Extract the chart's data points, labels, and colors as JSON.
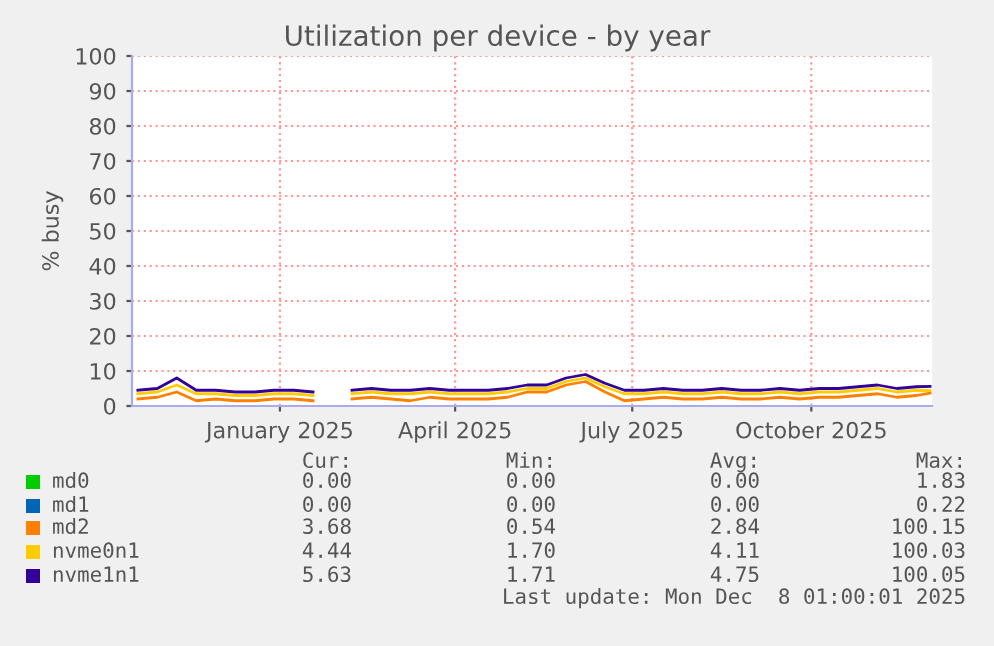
{
  "chart_data": {
    "type": "line",
    "title": "Utilization per device - by year",
    "ylabel": "% busy",
    "x": [
      "2024-10-20",
      "2024-10-30",
      "2024-11-09",
      "2024-11-19",
      "2024-11-29",
      "2024-12-09",
      "2024-12-19",
      "2024-12-29",
      "2025-01-08",
      "2025-01-18",
      "2025-01-28",
      "2025-02-07",
      "2025-02-17",
      "2025-02-27",
      "2025-03-09",
      "2025-03-19",
      "2025-03-29",
      "2025-04-08",
      "2025-04-18",
      "2025-04-28",
      "2025-05-08",
      "2025-05-18",
      "2025-05-28",
      "2025-06-07",
      "2025-06-17",
      "2025-06-27",
      "2025-07-07",
      "2025-07-17",
      "2025-07-27",
      "2025-08-06",
      "2025-08-16",
      "2025-08-26",
      "2025-09-05",
      "2025-09-15",
      "2025-09-25",
      "2025-10-05",
      "2025-10-15",
      "2025-10-25",
      "2025-11-04",
      "2025-11-14",
      "2025-11-24",
      "2025-12-01"
    ],
    "series": [
      {
        "name": "md0",
        "color": "#00cc00",
        "values": [
          null,
          null,
          null,
          null,
          null,
          null,
          null,
          null,
          null,
          null,
          null,
          null,
          null,
          null,
          null,
          null,
          null,
          null,
          null,
          null,
          null,
          null,
          null,
          null,
          null,
          null,
          null,
          null,
          null,
          null,
          null,
          null,
          null,
          null,
          null,
          null,
          null,
          null,
          null,
          null,
          null,
          null
        ]
      },
      {
        "name": "md1",
        "color": "#0066b3",
        "values": [
          null,
          null,
          null,
          null,
          null,
          null,
          null,
          null,
          null,
          null,
          null,
          null,
          null,
          null,
          null,
          null,
          null,
          null,
          null,
          null,
          null,
          null,
          null,
          null,
          null,
          null,
          null,
          null,
          null,
          null,
          null,
          null,
          null,
          null,
          null,
          null,
          null,
          null,
          null,
          null,
          null,
          null
        ]
      },
      {
        "name": "md2",
        "color": "#ff8000",
        "values": [
          2,
          2.5,
          4,
          1.5,
          2,
          1.5,
          1.5,
          2,
          2,
          1.5,
          null,
          2,
          2.5,
          2,
          1.5,
          2.5,
          2,
          2,
          2,
          2.5,
          4,
          4,
          6,
          7,
          4,
          1.5,
          2,
          2.5,
          2,
          2,
          2.5,
          2,
          2,
          2.5,
          2,
          2.5,
          2.5,
          3,
          3.5,
          2.5,
          3,
          3.7
        ]
      },
      {
        "name": "nvme0n1",
        "color": "#ffcc00",
        "values": [
          3.5,
          4,
          6,
          3.5,
          3.5,
          3,
          3,
          3.5,
          3.5,
          3,
          null,
          3.5,
          4,
          3.5,
          3.5,
          4,
          3.5,
          3.5,
          3.5,
          4,
          5,
          5,
          7,
          8,
          5.5,
          3.5,
          3.5,
          4,
          3.5,
          3.5,
          4,
          3.5,
          3.5,
          4,
          3.5,
          4,
          4,
          4.5,
          5,
          4,
          4.5,
          4.4
        ]
      },
      {
        "name": "nvme1n1",
        "color": "#330099",
        "values": [
          4.5,
          5,
          8,
          4.5,
          4.5,
          4,
          4,
          4.5,
          4.5,
          4,
          null,
          4.5,
          5,
          4.5,
          4.5,
          5,
          4.5,
          4.5,
          4.5,
          5,
          6,
          6,
          8,
          9,
          6.5,
          4.5,
          4.5,
          5,
          4.5,
          4.5,
          5,
          4.5,
          4.5,
          5,
          4.5,
          5,
          5,
          5.5,
          6,
          5,
          5.5,
          5.6
        ]
      }
    ],
    "xlim": [
      "2024-10-17",
      "2025-12-02"
    ],
    "xticks": [
      {
        "value": "2025-01-01",
        "label": "January 2025"
      },
      {
        "value": "2025-04-01",
        "label": "April 2025"
      },
      {
        "value": "2025-07-01",
        "label": "July 2025"
      },
      {
        "value": "2025-10-01",
        "label": "October 2025"
      }
    ],
    "ylim": [
      0,
      100
    ],
    "yticks": [
      0,
      10,
      20,
      30,
      40,
      50,
      60,
      70,
      80,
      90,
      100
    ],
    "grid": true,
    "legend": "bottom",
    "line_style": "solid",
    "annotations": [
      "Cur:",
      "Min:",
      "Avg:",
      "Max:",
      "0.00",
      "0.00",
      "0.00",
      "1.83",
      "0.00",
      "0.00",
      "0.00",
      "0.22",
      "3.68",
      "0.54",
      "2.84",
      "100.15",
      "4.44",
      "1.70",
      "4.11",
      "100.03",
      "5.63",
      "1.71",
      "4.75",
      "100.05",
      "Last update: Mon Dec  8 01:00:01 2025"
    ]
  }
}
